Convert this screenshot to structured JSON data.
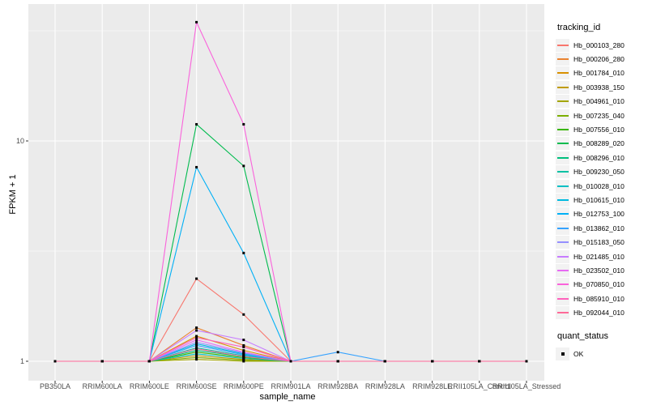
{
  "figure": {
    "y_axis_title": "FPKM + 1",
    "x_axis_title": "sample_name",
    "legend_title": "tracking_id",
    "quant_legend_title": "quant_status",
    "quant_legend_item": "OK"
  },
  "chart_data": {
    "type": "line",
    "title": "",
    "xlabel": "sample_name",
    "ylabel": "FPKM + 1",
    "y_scale": "log10",
    "ylim": [
      1,
      40
    ],
    "grid": "on",
    "legend_position": "right",
    "panel_bg": "#EBEBEB",
    "grid_color": "#FFFFFF",
    "tick_label_color": "#4D4D4D",
    "marker": {
      "shape": "black-square",
      "color": "#000000",
      "label": "OK"
    },
    "y_ticks": [
      {
        "value": 1,
        "label": "1"
      },
      {
        "value": 10,
        "label": "10"
      }
    ],
    "y_minor_ticks": [
      3.1623,
      31.623
    ],
    "categories": [
      "PB350LA",
      "RRIM600LA",
      "RRIM600LE",
      "RRIM600SE",
      "RRIM600PE",
      "RRIM901LA",
      "RRIM928BA",
      "RRIM928LA",
      "RRIM928LE",
      "RRII105LA_Control",
      "RRII105LA_Stressed"
    ],
    "series": [
      {
        "name": "Hb_000103_280",
        "color": "#F8766D",
        "values": [
          1,
          1,
          1,
          2.37,
          1.63,
          1,
          1,
          1,
          1,
          1,
          1
        ]
      },
      {
        "name": "Hb_000206_280",
        "color": "#EA8331",
        "values": [
          1,
          1,
          1,
          1.42,
          1.18,
          1,
          1,
          1,
          1,
          1,
          1
        ]
      },
      {
        "name": "Hb_001784_010",
        "color": "#D89000",
        "values": [
          1,
          1,
          1,
          1.3,
          1.12,
          1,
          1,
          1,
          1,
          1,
          1
        ]
      },
      {
        "name": "Hb_003938_150",
        "color": "#C09B00",
        "values": [
          1,
          1,
          1,
          1.06,
          1.02,
          1,
          1,
          1,
          1,
          1,
          1
        ]
      },
      {
        "name": "Hb_004961_010",
        "color": "#A3A500",
        "values": [
          1,
          1,
          1,
          1.02,
          1.0,
          1,
          1,
          1,
          1,
          1,
          1
        ]
      },
      {
        "name": "Hb_007235_040",
        "color": "#7CAE00",
        "values": [
          1,
          1,
          1,
          1.04,
          1.01,
          1,
          1,
          1,
          1,
          1,
          1
        ]
      },
      {
        "name": "Hb_007556_010",
        "color": "#39B600",
        "values": [
          1,
          1,
          1,
          1.1,
          1.04,
          1,
          1,
          1,
          1,
          1,
          1
        ]
      },
      {
        "name": "Hb_008289_020",
        "color": "#00BB4E",
        "values": [
          1,
          1,
          1,
          11.9,
          7.7,
          1,
          1,
          1,
          1,
          1,
          1
        ]
      },
      {
        "name": "Hb_008296_010",
        "color": "#00BF7D",
        "values": [
          1,
          1,
          1,
          1.12,
          1.05,
          1,
          1,
          1,
          1,
          1,
          1
        ]
      },
      {
        "name": "Hb_009230_050",
        "color": "#00C1A3",
        "values": [
          1,
          1,
          1,
          1.15,
          1.06,
          1,
          1,
          1,
          1,
          1,
          1
        ]
      },
      {
        "name": "Hb_010028_010",
        "color": "#00BFC4",
        "values": [
          1,
          1,
          1,
          1.08,
          1.03,
          1,
          1,
          1,
          1,
          1,
          1
        ]
      },
      {
        "name": "Hb_010615_010",
        "color": "#00BAE0",
        "values": [
          1,
          1,
          1,
          1.2,
          1.08,
          1,
          1,
          1,
          1,
          1,
          1
        ]
      },
      {
        "name": "Hb_012753_100",
        "color": "#00B0F6",
        "values": [
          1,
          1,
          1,
          7.6,
          3.1,
          1,
          1,
          1,
          1,
          1,
          1
        ]
      },
      {
        "name": "Hb_013862_010",
        "color": "#35A2FF",
        "values": [
          1,
          1,
          1,
          1.18,
          1.07,
          1,
          1.1,
          1,
          1,
          1,
          1
        ]
      },
      {
        "name": "Hb_015183_050",
        "color": "#9590FF",
        "values": [
          1,
          1,
          1,
          1.22,
          1.09,
          1,
          1,
          1,
          1,
          1,
          1
        ]
      },
      {
        "name": "Hb_021485_010",
        "color": "#C77CFF",
        "values": [
          1,
          1,
          1,
          1.38,
          1.25,
          1,
          1,
          1,
          1,
          1,
          1
        ]
      },
      {
        "name": "Hb_023502_010",
        "color": "#E76BF3",
        "values": [
          1,
          1,
          1,
          1.25,
          1.1,
          1,
          1,
          1,
          1,
          1,
          1
        ]
      },
      {
        "name": "Hb_070850_010",
        "color": "#FA62DB",
        "values": [
          1,
          1,
          1,
          34.6,
          11.9,
          1,
          1,
          1,
          1,
          1,
          1
        ]
      },
      {
        "name": "Hb_085910_010",
        "color": "#FF62BC",
        "values": [
          1,
          1,
          1,
          1.28,
          1.16,
          1,
          1,
          1,
          1,
          1,
          1
        ]
      },
      {
        "name": "Hb_092044_010",
        "color": "#FF6A98",
        "values": [
          1,
          1,
          1,
          1.14,
          1.05,
          1,
          1,
          1,
          1,
          1,
          1
        ]
      }
    ]
  }
}
